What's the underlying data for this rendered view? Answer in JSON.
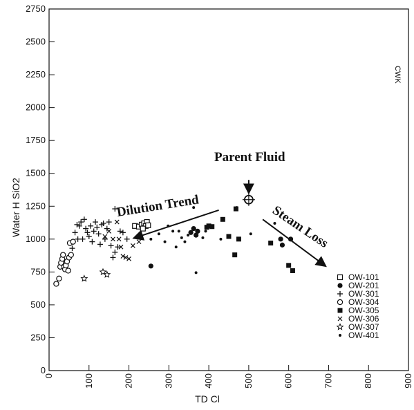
{
  "chart_data": {
    "type": "scatter",
    "xlabel": "TD Cl",
    "ylabel": "Water H SiO2",
    "xlim": [
      0,
      900
    ],
    "ylim": [
      0,
      2750
    ],
    "x_ticks": [
      0,
      100,
      200,
      300,
      400,
      500,
      600,
      700,
      800,
      900
    ],
    "y_ticks": [
      0,
      250,
      500,
      750,
      1000,
      1250,
      1500,
      1750,
      2000,
      2250,
      2500,
      2750
    ],
    "corner_label": "CWK",
    "grid": false,
    "legend_position": "bottom-right",
    "annotations": [
      {
        "text": "Parent Fluid",
        "x": 500,
        "y": 1300
      },
      {
        "text": "Dilution Trend",
        "x": 210,
        "y": 1050
      },
      {
        "text": "Steam Loss",
        "x": 660,
        "y": 800
      }
    ],
    "series": [
      {
        "name": "OW-101",
        "marker": "open-square",
        "points": [
          [
            215,
            1100
          ],
          [
            225,
            1095
          ],
          [
            232,
            1110
          ],
          [
            238,
            1120
          ],
          [
            245,
            1130
          ],
          [
            242,
            1100
          ],
          [
            248,
            1105
          ],
          [
            235,
            1080
          ]
        ]
      },
      {
        "name": "OW-201",
        "marker": "filled-circle",
        "points": [
          [
            255,
            795
          ],
          [
            355,
            1050
          ],
          [
            362,
            1080
          ],
          [
            368,
            1030
          ],
          [
            372,
            1060
          ],
          [
            580,
            1000
          ],
          [
            584,
            955
          ],
          [
            605,
            1000
          ]
        ]
      },
      {
        "name": "OW-301",
        "marker": "plus",
        "points": [
          [
            65,
            1050
          ],
          [
            70,
            1110
          ],
          [
            76,
            1100
          ],
          [
            80,
            1130
          ],
          [
            84,
            1000
          ],
          [
            88,
            1150
          ],
          [
            92,
            1080
          ],
          [
            96,
            1050
          ],
          [
            100,
            1020
          ],
          [
            104,
            1100
          ],
          [
            108,
            980
          ],
          [
            112,
            1060
          ],
          [
            116,
            1130
          ],
          [
            120,
            1090
          ],
          [
            124,
            1040
          ],
          [
            128,
            960
          ],
          [
            132,
            1110
          ],
          [
            136,
            1120
          ],
          [
            140,
            1000
          ],
          [
            145,
            1080
          ],
          [
            150,
            1130
          ],
          [
            155,
            950
          ],
          [
            160,
            860
          ],
          [
            165,
            900
          ],
          [
            165,
            1230
          ],
          [
            172,
            940
          ],
          [
            178,
            1060
          ],
          [
            185,
            1050
          ],
          [
            195,
            1000
          ],
          [
            60,
            980
          ],
          [
            58,
            930
          ],
          [
            72,
            1000
          ]
        ]
      },
      {
        "name": "OW-304",
        "marker": "open-circle",
        "points": [
          [
            18,
            660
          ],
          [
            25,
            700
          ],
          [
            28,
            790
          ],
          [
            30,
            820
          ],
          [
            33,
            850
          ],
          [
            35,
            880
          ],
          [
            38,
            790
          ],
          [
            40,
            770
          ],
          [
            42,
            800
          ],
          [
            45,
            830
          ],
          [
            48,
            760
          ],
          [
            50,
            860
          ],
          [
            52,
            970
          ],
          [
            55,
            880
          ],
          [
            60,
            980
          ]
        ]
      },
      {
        "name": "OW-305",
        "marker": "filled-square",
        "points": [
          [
            395,
            1090
          ],
          [
            400,
            1100
          ],
          [
            408,
            1095
          ],
          [
            435,
            1150
          ],
          [
            450,
            1020
          ],
          [
            465,
            880
          ],
          [
            468,
            1230
          ],
          [
            475,
            1000
          ],
          [
            555,
            970
          ],
          [
            600,
            800
          ],
          [
            610,
            760
          ]
        ]
      },
      {
        "name": "OW-306",
        "marker": "cross",
        "points": [
          [
            140,
            1020
          ],
          [
            150,
            1060
          ],
          [
            160,
            1000
          ],
          [
            170,
            1130
          ],
          [
            175,
            1000
          ],
          [
            180,
            940
          ],
          [
            185,
            870
          ],
          [
            192,
            860
          ],
          [
            200,
            850
          ],
          [
            210,
            950
          ],
          [
            225,
            980
          ]
        ]
      },
      {
        "name": "OW-307",
        "marker": "star",
        "points": [
          [
            88,
            700
          ],
          [
            135,
            750
          ],
          [
            145,
            730
          ]
        ]
      },
      {
        "name": "OW-401",
        "marker": "small-dot",
        "points": [
          [
            255,
            1000
          ],
          [
            275,
            1040
          ],
          [
            290,
            980
          ],
          [
            298,
            1100
          ],
          [
            310,
            1060
          ],
          [
            318,
            940
          ],
          [
            325,
            1060
          ],
          [
            332,
            1010
          ],
          [
            340,
            980
          ],
          [
            348,
            1030
          ],
          [
            362,
            1240
          ],
          [
            368,
            745
          ],
          [
            385,
            1010
          ],
          [
            392,
            1060
          ],
          [
            410,
            1090
          ],
          [
            430,
            1000
          ],
          [
            470,
            1240
          ],
          [
            505,
            1040
          ],
          [
            565,
            1120
          ]
        ]
      }
    ]
  }
}
